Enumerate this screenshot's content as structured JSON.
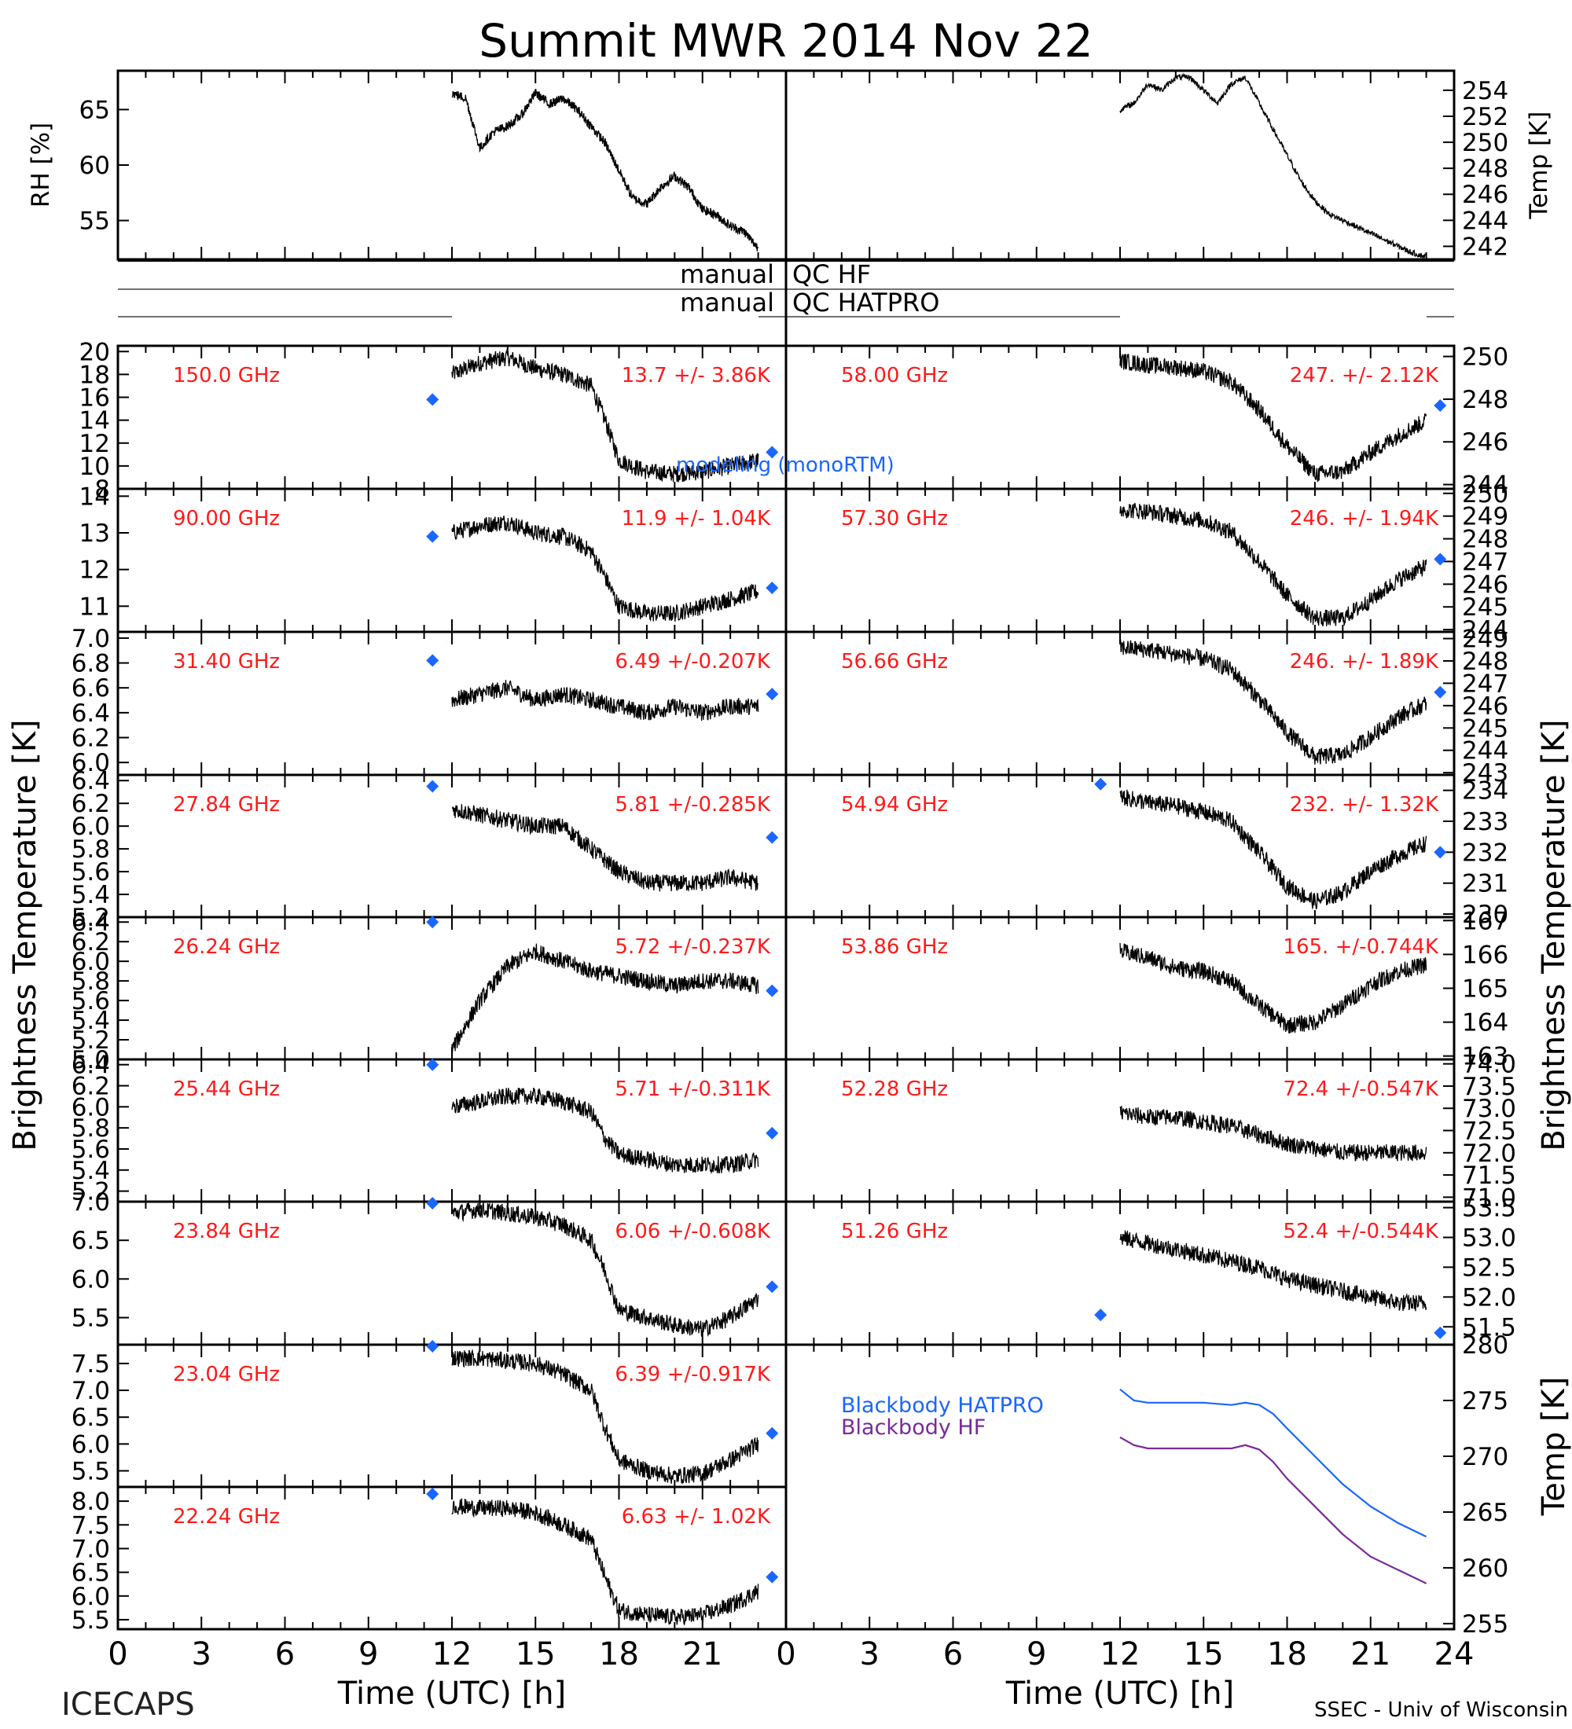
{
  "title": "Summit MWR 2014 Nov 22",
  "footer": {
    "left": "ICECAPS",
    "right": "SSEC - Univ of Wisconsin",
    "xlabel": "Time (UTC) [h]",
    "xticks": [
      "0",
      "3",
      "6",
      "9",
      "12",
      "15",
      "18",
      "21",
      "24"
    ],
    "xticks_left": [
      "0",
      "3",
      "6",
      "9",
      "12",
      "15",
      "18",
      "21",
      "0"
    ]
  },
  "side_labels": {
    "left": "Brightness Temperature [K]",
    "right": "Brightness Temperature [K]",
    "bb_right": "Temp [K]"
  },
  "qc": {
    "hf": [
      "manual",
      "QC HF"
    ],
    "hatpro": [
      "manual",
      "QC HATPRO"
    ]
  },
  "legend": {
    "model": "modeling (monoRTM)",
    "bb_hatpro": "Blackbody HATPRO",
    "bb_hf": "Blackbody HF"
  },
  "colors": {
    "channel_text": "#ff1a1a",
    "model_marker": "#1a66ff",
    "bb_hatpro": "#1a66ff",
    "bb_hf": "#7a2a99",
    "data": "#000000"
  },
  "chart_data": [
    {
      "type": "line",
      "panel": "rh",
      "ylabel": "RH [%]",
      "yticks": [
        "55",
        "60",
        "65"
      ],
      "ylim": [
        51.5,
        68.5
      ],
      "xlim": [
        0,
        24
      ],
      "x": [
        12.0,
        12.5,
        13.0,
        13.5,
        14.0,
        14.5,
        15.0,
        15.5,
        16.0,
        16.5,
        17.0,
        17.5,
        18.0,
        18.5,
        19.0,
        19.5,
        20.0,
        20.5,
        21.0,
        21.5,
        22.0,
        22.5,
        23.0
      ],
      "y": [
        66.5,
        66.0,
        61.5,
        63.0,
        63.5,
        64.5,
        66.5,
        65.5,
        66.0,
        65.0,
        63.5,
        62.0,
        59.5,
        57.0,
        56.5,
        58.0,
        59.0,
        58.0,
        56.0,
        55.5,
        54.5,
        54.0,
        52.5
      ]
    },
    {
      "type": "line",
      "panel": "temp",
      "ylabel": "Temp [K]",
      "yticks": [
        "242",
        "244",
        "246",
        "248",
        "250",
        "252",
        "254"
      ],
      "ylim": [
        241,
        255.5
      ],
      "xlim": [
        0,
        24
      ],
      "x": [
        12.0,
        12.5,
        13.0,
        13.5,
        14.0,
        14.5,
        15.0,
        15.5,
        16.0,
        16.5,
        17.0,
        17.5,
        18.0,
        18.5,
        19.0,
        19.5,
        20.0,
        20.5,
        21.0,
        21.5,
        22.0,
        22.5,
        23.0
      ],
      "y": [
        252.5,
        253.0,
        254.5,
        254.0,
        255.0,
        255.0,
        254.0,
        253.0,
        254.5,
        255.0,
        253.0,
        251.0,
        249.0,
        247.0,
        245.5,
        244.5,
        244.0,
        243.5,
        243.0,
        242.5,
        242.0,
        241.5,
        241.2
      ]
    },
    {
      "type": "line",
      "side": "left",
      "row": 0,
      "channel": "150.0 GHz",
      "stat": "13.7 +/- 3.86K",
      "ylim": [
        8,
        20.5
      ],
      "yticks": [
        "8",
        "10",
        "12",
        "14",
        "16",
        "18",
        "20"
      ],
      "x": [
        12,
        13,
        14,
        15,
        16,
        17,
        17.5,
        18,
        19,
        20,
        21,
        22,
        23
      ],
      "y": [
        18,
        19,
        19.5,
        18.5,
        18,
        17,
        14,
        10.5,
        9.5,
        9.3,
        9.5,
        10,
        10.5
      ],
      "model_x": [
        11.3,
        23.5
      ],
      "model_y": [
        15.8,
        11.2
      ]
    },
    {
      "type": "line",
      "side": "left",
      "row": 1,
      "channel": "90.00 GHz",
      "stat": "11.9 +/- 1.04K",
      "ylim": [
        10.3,
        14.2
      ],
      "yticks": [
        "11",
        "12",
        "13",
        "14"
      ],
      "x": [
        12,
        13,
        14,
        15,
        16,
        17,
        17.5,
        18,
        19,
        20,
        21,
        22,
        23
      ],
      "y": [
        13,
        13.2,
        13.3,
        13.0,
        12.9,
        12.5,
        11.8,
        11.0,
        10.8,
        10.8,
        11.0,
        11.2,
        11.4
      ],
      "model_x": [
        11.3,
        23.5
      ],
      "model_y": [
        12.9,
        11.5
      ]
    },
    {
      "type": "line",
      "side": "left",
      "row": 2,
      "channel": "31.40 GHz",
      "stat": "6.49 +/-0.207K",
      "ylim": [
        5.9,
        7.05
      ],
      "yticks": [
        "6.0",
        "6.2",
        "6.4",
        "6.6",
        "6.8",
        "7.0"
      ],
      "x": [
        12,
        13,
        14,
        15,
        16,
        17,
        18,
        19,
        20,
        21,
        22,
        23
      ],
      "y": [
        6.5,
        6.55,
        6.6,
        6.5,
        6.55,
        6.5,
        6.45,
        6.4,
        6.45,
        6.4,
        6.45,
        6.45
      ],
      "model_x": [
        11.3,
        23.5
      ],
      "model_y": [
        6.82,
        6.55
      ]
    },
    {
      "type": "line",
      "side": "left",
      "row": 3,
      "channel": "27.84 GHz",
      "stat": "5.81 +/-0.285K",
      "ylim": [
        5.2,
        6.45
      ],
      "yticks": [
        "5.2",
        "5.4",
        "5.6",
        "5.8",
        "6.0",
        "6.2",
        "6.4"
      ],
      "x": [
        12,
        13,
        14,
        15,
        16,
        17,
        18,
        19,
        20,
        21,
        22,
        23
      ],
      "y": [
        6.15,
        6.1,
        6.05,
        6.0,
        6.0,
        5.8,
        5.6,
        5.5,
        5.5,
        5.5,
        5.55,
        5.5
      ],
      "model_x": [
        11.3,
        23.5
      ],
      "model_y": [
        6.35,
        5.9
      ]
    },
    {
      "type": "line",
      "side": "left",
      "row": 4,
      "channel": "26.24 GHz",
      "stat": "5.72 +/-0.237K",
      "ylim": [
        5.0,
        6.45
      ],
      "yticks": [
        "5.0",
        "5.2",
        "5.4",
        "5.6",
        "5.8",
        "6.0",
        "6.2",
        "6.4"
      ],
      "x": [
        12,
        13,
        14,
        15,
        16,
        17,
        18,
        19,
        20,
        21,
        22,
        23
      ],
      "y": [
        5.1,
        5.6,
        5.95,
        6.1,
        6.0,
        5.9,
        5.85,
        5.8,
        5.75,
        5.8,
        5.8,
        5.75
      ],
      "model_x": [
        11.3,
        23.5
      ],
      "model_y": [
        6.4,
        5.7
      ]
    },
    {
      "type": "line",
      "side": "left",
      "row": 5,
      "channel": "25.44 GHz",
      "stat": "5.71 +/-0.311K",
      "ylim": [
        5.1,
        6.45
      ],
      "yticks": [
        "5.2",
        "5.4",
        "5.6",
        "5.8",
        "6.0",
        "6.2",
        "6.4"
      ],
      "x": [
        12,
        13,
        14,
        15,
        16,
        17,
        17.5,
        18,
        19,
        20,
        21,
        22,
        23
      ],
      "y": [
        6.0,
        6.05,
        6.1,
        6.1,
        6.05,
        5.95,
        5.7,
        5.55,
        5.5,
        5.45,
        5.45,
        5.45,
        5.5
      ],
      "model_x": [
        11.3,
        23.5
      ],
      "model_y": [
        6.4,
        5.75
      ]
    },
    {
      "type": "line",
      "side": "left",
      "row": 6,
      "channel": "23.84 GHz",
      "stat": "6.06 +/-0.608K",
      "ylim": [
        5.15,
        7.0
      ],
      "yticks": [
        "5.5",
        "6.0",
        "6.5",
        "7.0"
      ],
      "x": [
        12,
        13,
        14,
        15,
        16,
        17,
        17.5,
        18,
        19,
        20,
        21,
        22,
        23
      ],
      "y": [
        6.85,
        6.9,
        6.85,
        6.8,
        6.7,
        6.5,
        6.1,
        5.6,
        5.5,
        5.4,
        5.35,
        5.5,
        5.75
      ],
      "model_x": [
        11.3,
        23.5
      ],
      "model_y": [
        7.02,
        5.9
      ]
    },
    {
      "type": "line",
      "side": "left",
      "row": 7,
      "channel": "23.04 GHz",
      "stat": "6.39 +/-0.917K",
      "ylim": [
        5.2,
        7.85
      ],
      "yticks": [
        "5.5",
        "6.0",
        "6.5",
        "7.0",
        "7.5"
      ],
      "x": [
        12,
        13,
        14,
        15,
        16,
        17,
        17.5,
        18,
        19,
        20,
        21,
        22,
        23
      ],
      "y": [
        7.6,
        7.6,
        7.55,
        7.5,
        7.3,
        7.0,
        6.3,
        5.7,
        5.5,
        5.4,
        5.45,
        5.7,
        6.0
      ],
      "model_x": [
        11.3,
        23.5
      ],
      "model_y": [
        7.85,
        6.2
      ]
    },
    {
      "type": "line",
      "side": "left",
      "row": 8,
      "channel": "22.24 GHz",
      "stat": "6.63 +/- 1.02K",
      "ylim": [
        5.3,
        8.3
      ],
      "yticks": [
        "5.5",
        "6.0",
        "6.5",
        "7.0",
        "7.5",
        "8.0"
      ],
      "x": [
        12,
        13,
        14,
        15,
        16,
        17,
        17.5,
        18,
        19,
        20,
        21,
        22,
        23
      ],
      "y": [
        7.9,
        7.85,
        7.85,
        7.75,
        7.5,
        7.2,
        6.4,
        5.7,
        5.6,
        5.55,
        5.6,
        5.8,
        6.1
      ],
      "model_x": [
        11.3,
        23.5
      ],
      "model_y": [
        8.15,
        6.4
      ]
    },
    {
      "type": "line",
      "side": "right",
      "row": 0,
      "channel": "58.00 GHz",
      "stat": "247. +/- 2.12K",
      "ylim": [
        243.8,
        250.5
      ],
      "yticks": [
        "244",
        "246",
        "248",
        "250"
      ],
      "x": [
        12,
        13,
        14,
        15,
        16,
        17,
        18,
        19,
        20,
        21,
        22,
        23
      ],
      "y": [
        249.8,
        249.6,
        249.5,
        249.3,
        248.8,
        247.5,
        245.8,
        244.5,
        244.6,
        245.5,
        246.3,
        247.0
      ],
      "model_x": [
        23.5
      ],
      "model_y": [
        247.7
      ]
    },
    {
      "type": "line",
      "side": "right",
      "row": 1,
      "channel": "57.30 GHz",
      "stat": "246. +/- 1.94K",
      "ylim": [
        243.9,
        250.2
      ],
      "yticks": [
        "244",
        "245",
        "246",
        "247",
        "248",
        "249",
        "250"
      ],
      "x": [
        12,
        13,
        14,
        15,
        16,
        17,
        18,
        19,
        20,
        21,
        22,
        23
      ],
      "y": [
        249.3,
        249.2,
        249.0,
        248.8,
        248.3,
        247.0,
        245.5,
        244.5,
        244.5,
        245.3,
        246.2,
        246.8
      ],
      "model_x": [
        23.5
      ],
      "model_y": [
        247.1
      ]
    },
    {
      "type": "line",
      "side": "right",
      "row": 2,
      "channel": "56.66 GHz",
      "stat": "246. +/- 1.89K",
      "ylim": [
        242.9,
        249.3
      ],
      "yticks": [
        "243",
        "244",
        "245",
        "246",
        "247",
        "248",
        "249"
      ],
      "x": [
        12,
        13,
        14,
        15,
        16,
        17,
        18,
        19,
        20,
        21,
        22,
        23
      ],
      "y": [
        248.6,
        248.5,
        248.3,
        248.1,
        247.6,
        246.3,
        244.8,
        243.7,
        243.8,
        244.6,
        245.5,
        246.1
      ],
      "model_x": [
        23.5
      ],
      "model_y": [
        246.6
      ]
    },
    {
      "type": "line",
      "side": "right",
      "row": 3,
      "channel": "54.94 GHz",
      "stat": "232. +/- 1.32K",
      "ylim": [
        229.9,
        234.5
      ],
      "yticks": [
        "230",
        "231",
        "232",
        "233",
        "234"
      ],
      "x": [
        12,
        13,
        14,
        15,
        16,
        17,
        18,
        19,
        20,
        21,
        22,
        23
      ],
      "y": [
        233.8,
        233.6,
        233.5,
        233.3,
        233.0,
        232.0,
        230.9,
        230.4,
        230.7,
        231.4,
        231.9,
        232.3
      ],
      "model_x": [
        11.3,
        23.5
      ],
      "model_y": [
        234.2,
        232.0
      ]
    },
    {
      "type": "line",
      "side": "right",
      "row": 4,
      "channel": "53.86 GHz",
      "stat": "165. +/-0.744K",
      "ylim": [
        162.9,
        167.1
      ],
      "yticks": [
        "163",
        "164",
        "165",
        "166",
        "167"
      ],
      "x": [
        12,
        13,
        14,
        15,
        16,
        17,
        18,
        19,
        20,
        21,
        22,
        23
      ],
      "y": [
        166.1,
        165.9,
        165.6,
        165.5,
        165.2,
        164.5,
        163.9,
        164.0,
        164.5,
        165.1,
        165.5,
        165.7
      ],
      "model_x": [],
      "model_y": []
    },
    {
      "type": "line",
      "side": "right",
      "row": 5,
      "channel": "52.28 GHz",
      "stat": "72.4 +/-0.547K",
      "ylim": [
        70.9,
        74.1
      ],
      "yticks": [
        "71.0",
        "71.5",
        "72.0",
        "72.5",
        "73.0",
        "73.5",
        "74.0"
      ],
      "x": [
        12,
        13,
        14,
        15,
        16,
        17,
        18,
        19,
        20,
        21,
        22,
        23
      ],
      "y": [
        72.9,
        72.8,
        72.8,
        72.7,
        72.6,
        72.4,
        72.2,
        72.1,
        72.0,
        72.0,
        72.0,
        72.0
      ],
      "model_x": [],
      "model_y": []
    },
    {
      "type": "line",
      "side": "right",
      "row": 6,
      "channel": "51.26 GHz",
      "stat": "52.4 +/-0.544K",
      "ylim": [
        51.2,
        53.6
      ],
      "yticks": [
        "51.5",
        "52.0",
        "52.5",
        "53.0",
        "53.5"
      ],
      "x": [
        12,
        13,
        14,
        15,
        16,
        17,
        18,
        19,
        20,
        21,
        22,
        23
      ],
      "y": [
        53.0,
        52.9,
        52.8,
        52.7,
        52.6,
        52.5,
        52.3,
        52.2,
        52.1,
        52.0,
        51.9,
        51.9
      ],
      "model_x": [
        11.3,
        23.5
      ],
      "model_y": [
        51.7,
        51.4
      ]
    },
    {
      "type": "line",
      "panel": "blackbody",
      "ylabel": "Temp [K]",
      "yticks": [
        "255",
        "260",
        "265",
        "270",
        "275",
        "280"
      ],
      "ylim": [
        254.5,
        280
      ],
      "xlim": [
        0,
        24
      ],
      "x": [
        12,
        12.5,
        13,
        14,
        15,
        16,
        16.5,
        17,
        17.5,
        18,
        19,
        20,
        21,
        22,
        23
      ],
      "series": [
        {
          "name": "Blackbody HATPRO",
          "values": [
            276.0,
            275.0,
            274.8,
            274.8,
            274.8,
            274.6,
            274.8,
            274.6,
            273.8,
            272.5,
            270.0,
            267.5,
            265.5,
            264.0,
            262.8
          ]
        },
        {
          "name": "Blackbody HF",
          "values": [
            271.7,
            271.0,
            270.7,
            270.7,
            270.7,
            270.7,
            271.0,
            270.6,
            269.5,
            268.0,
            265.5,
            263.0,
            261.0,
            259.8,
            258.6
          ]
        }
      ]
    }
  ]
}
